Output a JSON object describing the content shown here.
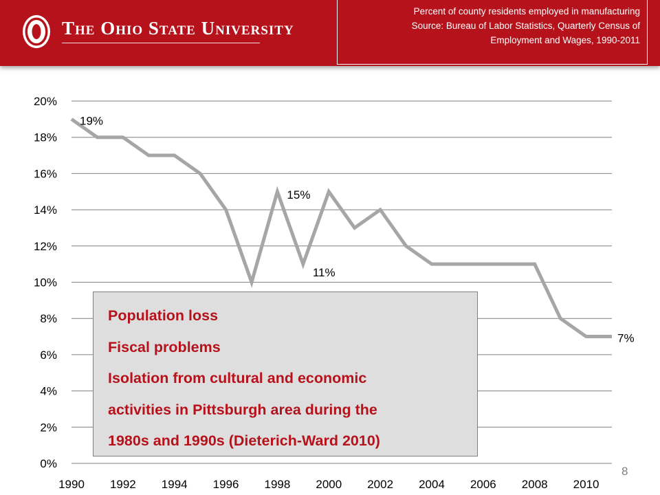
{
  "header": {
    "university": "The Ohio State University",
    "source_lines": [
      "Percent of county residents employed in manufacturing",
      "Source: Bureau of Labor Statistics, Quarterly Census of",
      "Employment and Wages, 1990-2011"
    ],
    "brand_color": "#b5121b"
  },
  "chart_data": {
    "type": "line",
    "title": "",
    "xlabel": "",
    "ylabel": "",
    "x": [
      1990,
      1991,
      1992,
      1993,
      1994,
      1995,
      1996,
      1997,
      1998,
      1999,
      2000,
      2001,
      2002,
      2003,
      2004,
      2005,
      2006,
      2007,
      2008,
      2009,
      2010,
      2011
    ],
    "series": [
      {
        "values": [
          19,
          18,
          18,
          17,
          17,
          16,
          14,
          10,
          15,
          11,
          15,
          13,
          14,
          12,
          11,
          11,
          11,
          11,
          11,
          8,
          7,
          7
        ],
        "color": "#a6a6a6"
      }
    ],
    "xticks": [
      "1990",
      "1992",
      "1994",
      "1996",
      "1998",
      "2000",
      "2002",
      "2004",
      "2006",
      "2008",
      "2010"
    ],
    "yticks": [
      "0%",
      "2%",
      "4%",
      "6%",
      "8%",
      "10%",
      "12%",
      "14%",
      "16%",
      "18%",
      "20%"
    ],
    "ylim": [
      0,
      20
    ],
    "xlim": [
      1990,
      2011
    ],
    "grid": true,
    "legend": "none",
    "data_labels": [
      {
        "x": 1990,
        "y": 19,
        "text": "19%"
      },
      {
        "x": 1998,
        "y": 15,
        "text": "15%"
      },
      {
        "x": 1999,
        "y": 11,
        "text": "11%"
      },
      {
        "x": 2011,
        "y": 7,
        "text": "7%"
      }
    ]
  },
  "note_box": {
    "lines": [
      "Population loss",
      "Fiscal problems",
      "Isolation from cultural and economic",
      "activities in Pittsburgh area during the",
      "1980s and 1990s (Dieterich-Ward 2010)"
    ]
  },
  "slide_number": "8"
}
